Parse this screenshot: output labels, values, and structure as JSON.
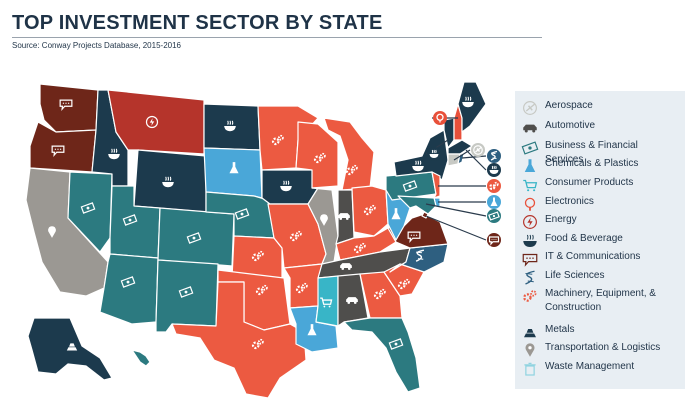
{
  "header": {
    "title": "TOP INVESTMENT SECTOR BY STATE",
    "source": "Source: Conway Projects Database, 2015-2016"
  },
  "colors": {
    "aerospace": "#c7c9c4",
    "automotive": "#4f4e4c",
    "business": "#2c7a80",
    "chemicals": "#4aa7d8",
    "consumer": "#38b5c7",
    "electronics": "#e8503a",
    "energy": "#b5342b",
    "food": "#1c3a4d",
    "it": "#6e2619",
    "life_sciences": "#2e5f80",
    "machinery": "#ec5a41",
    "metals": "#1c3a4d",
    "transportation": "#9b9893",
    "waste": "#8fd3e0"
  },
  "legend": [
    {
      "label": "Aerospace",
      "icon": "aerospace-icon",
      "color_key": "aerospace"
    },
    {
      "label": "Automotive",
      "icon": "car-icon",
      "color_key": "automotive"
    },
    {
      "label": "Business & Financial Services",
      "icon": "money-icon",
      "color_key": "business"
    },
    {
      "label": "Chemicals & Plastics",
      "icon": "flask-icon",
      "color_key": "chemicals"
    },
    {
      "label": "Consumer Products",
      "icon": "cart-icon",
      "color_key": "consumer"
    },
    {
      "label": "Electronics",
      "icon": "electronics-icon",
      "color_key": "electronics"
    },
    {
      "label": "Energy",
      "icon": "energy-icon",
      "color_key": "energy"
    },
    {
      "label": "Food & Beverage",
      "icon": "bowl-icon",
      "color_key": "food"
    },
    {
      "label": "IT & Communications",
      "icon": "chat-icon",
      "color_key": "it"
    },
    {
      "label": "Life Sciences",
      "icon": "dna-icon",
      "color_key": "life_sciences"
    },
    {
      "label": "Machinery, Equipment, & Construction",
      "icon": "gears-icon",
      "color_key": "machinery"
    },
    {
      "label": "Metals",
      "icon": "bars-icon",
      "color_key": "metals"
    },
    {
      "label": "Transportation & Logistics",
      "icon": "pin-icon",
      "color_key": "transportation"
    },
    {
      "label": "Waste Management",
      "icon": "bin-icon",
      "color_key": "waste"
    }
  ],
  "map": {
    "states": [
      {
        "id": "WA",
        "sector": "it"
      },
      {
        "id": "OR",
        "sector": "it"
      },
      {
        "id": "CA",
        "sector": "transportation"
      },
      {
        "id": "NV",
        "sector": "business"
      },
      {
        "id": "ID",
        "sector": "food"
      },
      {
        "id": "MT",
        "sector": "energy"
      },
      {
        "id": "WY",
        "sector": "food"
      },
      {
        "id": "UT",
        "sector": "business"
      },
      {
        "id": "AZ",
        "sector": "business"
      },
      {
        "id": "CO",
        "sector": "business"
      },
      {
        "id": "NM",
        "sector": "business"
      },
      {
        "id": "ND",
        "sector": "food"
      },
      {
        "id": "SD",
        "sector": "chemicals"
      },
      {
        "id": "NE",
        "sector": "business"
      },
      {
        "id": "KS",
        "sector": "machinery"
      },
      {
        "id": "OK",
        "sector": "machinery"
      },
      {
        "id": "TX",
        "sector": "machinery"
      },
      {
        "id": "MN",
        "sector": "machinery"
      },
      {
        "id": "IA",
        "sector": "food"
      },
      {
        "id": "MO",
        "sector": "machinery"
      },
      {
        "id": "AR",
        "sector": "machinery"
      },
      {
        "id": "LA",
        "sector": "chemicals"
      },
      {
        "id": "WI",
        "sector": "machinery"
      },
      {
        "id": "IL",
        "sector": "transportation"
      },
      {
        "id": "MI",
        "sector": "machinery"
      },
      {
        "id": "IN",
        "sector": "automotive"
      },
      {
        "id": "OH",
        "sector": "machinery"
      },
      {
        "id": "KY",
        "sector": "machinery"
      },
      {
        "id": "TN",
        "sector": "automotive"
      },
      {
        "id": "MS",
        "sector": "consumer"
      },
      {
        "id": "AL",
        "sector": "automotive"
      },
      {
        "id": "GA",
        "sector": "machinery"
      },
      {
        "id": "FL",
        "sector": "business"
      },
      {
        "id": "SC",
        "sector": "machinery"
      },
      {
        "id": "NC",
        "sector": "life_sciences"
      },
      {
        "id": "VA",
        "sector": "it"
      },
      {
        "id": "WV",
        "sector": "chemicals"
      },
      {
        "id": "PA",
        "sector": "business"
      },
      {
        "id": "NY",
        "sector": "food"
      },
      {
        "id": "VT",
        "sector": "food"
      },
      {
        "id": "NH",
        "sector": "electronics"
      },
      {
        "id": "ME",
        "sector": "food"
      },
      {
        "id": "MA",
        "sector": "food"
      },
      {
        "id": "CT",
        "sector": "aerospace"
      },
      {
        "id": "RI",
        "sector": "life_sciences"
      },
      {
        "id": "NJ",
        "sector": "machinery"
      },
      {
        "id": "DE",
        "sector": "chemicals"
      },
      {
        "id": "MD",
        "sector": "business"
      },
      {
        "id": "DC",
        "sector": "it"
      },
      {
        "id": "AK",
        "sector": "metals"
      },
      {
        "id": "HI",
        "sector": "business"
      }
    ]
  }
}
